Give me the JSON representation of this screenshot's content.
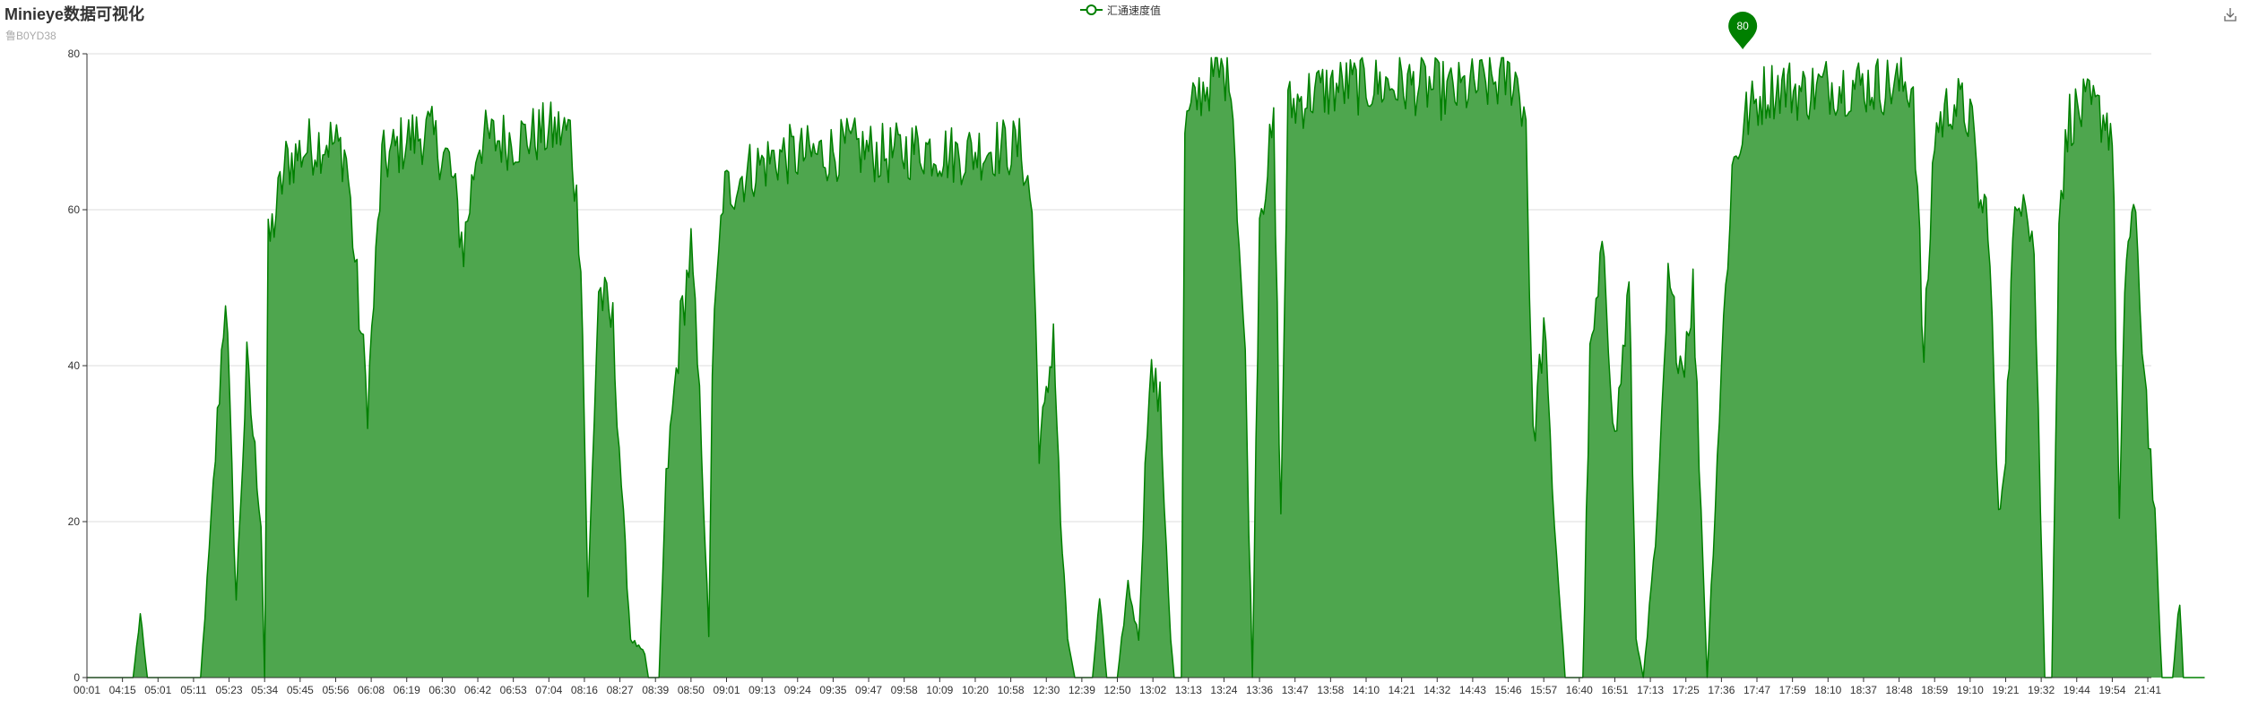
{
  "header": {
    "title": "Minieye数据可视化",
    "subtitle": "鲁B0YD38"
  },
  "toolbox": {
    "save_icon": "download-icon"
  },
  "colors": {
    "series": "#008000",
    "area": "#4ea64e",
    "grid": "#dddddd",
    "axis": "#333333"
  },
  "chart_data": {
    "type": "area",
    "title": "Minieye数据可视化",
    "subtitle": "鲁B0YD38",
    "legend": {
      "entries": [
        "汇通速度值"
      ],
      "placement": "top-center"
    },
    "ylim": [
      0,
      80
    ],
    "yticks": [
      0,
      20,
      40,
      60,
      80
    ],
    "grid": true,
    "x_tick_labels": [
      "00:01",
      "04:15",
      "05:01",
      "05:11",
      "05:23",
      "05:34",
      "05:45",
      "05:56",
      "06:08",
      "06:19",
      "06:30",
      "06:42",
      "06:53",
      "07:04",
      "08:16",
      "08:27",
      "08:39",
      "08:50",
      "09:01",
      "09:13",
      "09:24",
      "09:35",
      "09:47",
      "09:58",
      "10:09",
      "10:20",
      "10:58",
      "12:30",
      "12:39",
      "12:50",
      "13:02",
      "13:13",
      "13:24",
      "13:36",
      "13:47",
      "13:58",
      "14:10",
      "14:21",
      "14:32",
      "14:43",
      "15:46",
      "15:57",
      "16:40",
      "16:51",
      "17:13",
      "17:25",
      "17:36",
      "17:47",
      "17:59",
      "18:10",
      "18:37",
      "18:48",
      "18:59",
      "19:10",
      "19:21",
      "19:32",
      "19:44",
      "19:54",
      "21:41"
    ],
    "series": [
      {
        "name": "汇通速度值",
        "segments": [
          [
            0,
            0
          ],
          [
            1.3,
            0
          ],
          [
            1.5,
            8
          ],
          [
            1.7,
            0
          ],
          [
            3.2,
            0
          ],
          [
            3.5,
            20
          ],
          [
            3.9,
            50
          ],
          [
            4.2,
            10
          ],
          [
            4.5,
            40
          ],
          [
            4.9,
            20
          ],
          [
            5.0,
            0
          ],
          [
            5.1,
            55
          ],
          [
            5.6,
            66
          ],
          [
            6.2,
            68
          ],
          [
            6.8,
            69
          ],
          [
            7.3,
            67
          ],
          [
            7.6,
            50
          ],
          [
            7.9,
            35
          ],
          [
            8.3,
            66
          ],
          [
            9.0,
            69
          ],
          [
            9.6,
            70
          ],
          [
            10.2,
            66
          ],
          [
            10.6,
            55
          ],
          [
            11.0,
            69
          ],
          [
            12.0,
            69
          ],
          [
            13.0,
            70
          ],
          [
            13.6,
            70
          ],
          [
            13.9,
            55
          ],
          [
            14.1,
            10
          ],
          [
            14.4,
            50
          ],
          [
            14.8,
            45
          ],
          [
            15.1,
            20
          ],
          [
            15.3,
            5
          ],
          [
            15.7,
            3
          ],
          [
            15.8,
            0
          ],
          [
            16.1,
            0
          ],
          [
            16.3,
            25
          ],
          [
            16.7,
            45
          ],
          [
            17.0,
            55
          ],
          [
            17.3,
            30
          ],
          [
            17.5,
            5
          ],
          [
            17.6,
            40
          ],
          [
            17.9,
            62
          ],
          [
            18.6,
            65
          ],
          [
            19.5,
            67
          ],
          [
            20.5,
            67
          ],
          [
            21.5,
            68
          ],
          [
            22.5,
            67
          ],
          [
            23.5,
            68
          ],
          [
            24.5,
            67
          ],
          [
            25.5,
            68
          ],
          [
            26.3,
            68
          ],
          [
            26.6,
            60
          ],
          [
            26.8,
            30
          ],
          [
            27.0,
            35
          ],
          [
            27.2,
            45
          ],
          [
            27.4,
            20
          ],
          [
            27.6,
            5
          ],
          [
            27.8,
            0
          ],
          [
            28.3,
            0
          ],
          [
            28.5,
            10
          ],
          [
            28.7,
            0
          ],
          [
            29.0,
            0
          ],
          [
            29.3,
            12
          ],
          [
            29.6,
            5
          ],
          [
            29.9,
            40
          ],
          [
            30.2,
            35
          ],
          [
            30.5,
            5
          ],
          [
            30.6,
            0
          ],
          [
            30.8,
            0
          ],
          [
            30.9,
            70
          ],
          [
            31.3,
            75
          ],
          [
            31.7,
            77
          ],
          [
            32.2,
            78
          ],
          [
            32.6,
            40
          ],
          [
            32.8,
            0
          ],
          [
            33.0,
            60
          ],
          [
            33.4,
            70
          ],
          [
            33.6,
            20
          ],
          [
            33.8,
            73
          ],
          [
            34.5,
            75
          ],
          [
            35.5,
            76
          ],
          [
            36.5,
            76
          ],
          [
            37.5,
            76
          ],
          [
            38.5,
            75
          ],
          [
            39.2,
            76
          ],
          [
            40.2,
            77
          ],
          [
            40.5,
            72
          ],
          [
            40.7,
            30
          ],
          [
            41.0,
            45
          ],
          [
            41.3,
            20
          ],
          [
            41.6,
            0
          ],
          [
            42.1,
            0
          ],
          [
            42.3,
            40
          ],
          [
            42.7,
            55
          ],
          [
            43.0,
            30
          ],
          [
            43.4,
            50
          ],
          [
            43.6,
            5
          ],
          [
            43.8,
            0
          ],
          [
            44.2,
            20
          ],
          [
            44.5,
            50
          ],
          [
            44.9,
            40
          ],
          [
            45.2,
            50
          ],
          [
            45.6,
            0
          ],
          [
            46.0,
            40
          ],
          [
            46.3,
            65
          ],
          [
            46.7,
            72
          ],
          [
            47.2,
            75
          ],
          [
            47.7,
            76
          ],
          [
            48.3,
            75
          ],
          [
            49.0,
            76
          ],
          [
            49.7,
            76
          ],
          [
            50.4,
            76
          ],
          [
            51.0,
            76
          ],
          [
            51.4,
            76
          ],
          [
            51.7,
            40
          ],
          [
            52.0,
            70
          ],
          [
            52.5,
            74
          ],
          [
            53.0,
            72
          ],
          [
            53.3,
            60
          ],
          [
            53.5,
            60
          ],
          [
            53.8,
            20
          ],
          [
            54.0,
            30
          ],
          [
            54.2,
            55
          ],
          [
            54.5,
            65
          ],
          [
            54.8,
            55
          ],
          [
            55.1,
            0
          ],
          [
            55.3,
            0
          ],
          [
            55.5,
            60
          ],
          [
            55.8,
            72
          ],
          [
            56.3,
            73
          ],
          [
            56.8,
            72
          ],
          [
            57.0,
            70
          ],
          [
            57.2,
            20
          ],
          [
            57.4,
            55
          ],
          [
            57.6,
            60
          ],
          [
            57.9,
            40
          ],
          [
            58.2,
            20
          ],
          [
            58.4,
            0
          ],
          [
            58.7,
            0
          ],
          [
            58.9,
            10
          ],
          [
            59.0,
            0
          ],
          [
            59.5,
            0
          ],
          [
            59.6,
            0
          ]
        ]
      }
    ],
    "annotations": [
      {
        "type": "max-marker",
        "label": "80"
      }
    ]
  }
}
